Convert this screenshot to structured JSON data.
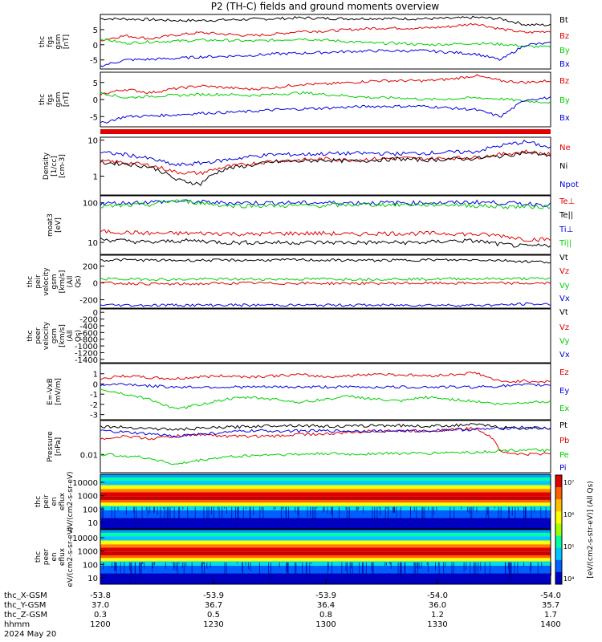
{
  "title": "P2 (TH-C) fields and ground moments overview",
  "date_label": "2024 May 20",
  "footer": {
    "rows": [
      {
        "label": "thc_X-GSM",
        "values": [
          "-53.8",
          "-53.9",
          "-53.9",
          "-54.0",
          "-54.0"
        ]
      },
      {
        "label": "thc_Y-GSM",
        "values": [
          "37.0",
          "36.7",
          "36.4",
          "36.0",
          "35.7"
        ]
      },
      {
        "label": "thc_Z-GSM",
        "values": [
          "0.3",
          "0.5",
          "0.8",
          "1.2",
          "1.7"
        ]
      },
      {
        "label": "hhmm",
        "values": [
          "1200",
          "1230",
          "1300",
          "1330",
          "1400"
        ]
      }
    ]
  },
  "colorbar": {
    "label": "[eV/(cm2-s-str-eV)] (All Qs)",
    "ticks": [
      "10⁴",
      "10⁵",
      "10⁶",
      "10⁷"
    ]
  },
  "colors": {
    "black": "#000000",
    "red": "#e00000",
    "green": "#00d000",
    "blue": "#0000e0"
  },
  "chart_data": [
    {
      "id": "fgs",
      "type": "line",
      "ylabel": "thc fgs gsm [nT]",
      "yticks": [
        "5",
        "0",
        "-5"
      ],
      "ylim": [
        -8,
        10
      ],
      "series": [
        {
          "name": "Bt",
          "color": "black",
          "values": [
            8.6,
            8.5,
            8.3,
            8.0,
            8.0,
            8.2,
            8.4,
            8.6,
            8.9,
            8.7,
            8.6,
            8.7,
            8.6,
            8.6,
            8.7,
            9.0,
            8.6,
            6.6,
            6.5
          ]
        },
        {
          "name": "Bz",
          "color": "red",
          "values": [
            1.5,
            3.0,
            2.0,
            3.2,
            4.0,
            3.5,
            3.0,
            3.5,
            4.5,
            4.5,
            5.0,
            5.5,
            5.5,
            5.5,
            6.0,
            7.0,
            5.2,
            4.0,
            4.5
          ]
        },
        {
          "name": "By",
          "color": "green",
          "values": [
            2.0,
            0.5,
            1.0,
            1.2,
            1.5,
            1.5,
            1.2,
            1.5,
            2.0,
            1.5,
            1.0,
            0.5,
            0.5,
            0.0,
            0.2,
            0.5,
            0.2,
            -0.5,
            -0.8
          ]
        },
        {
          "name": "Bx",
          "color": "blue",
          "values": [
            -7.0,
            -5.0,
            -4.8,
            -4.5,
            -4.0,
            -3.8,
            -3.5,
            -3.0,
            -2.8,
            -2.5,
            -2.2,
            -2.0,
            -2.0,
            -2.0,
            -2.5,
            -3.0,
            -5.0,
            0.0,
            0.5
          ]
        }
      ]
    },
    {
      "id": "fgm",
      "type": "line",
      "ylabel": "thc fgs gsm [nT]",
      "yticks": [
        "5",
        "0",
        "-5"
      ],
      "ylim": [
        -8,
        8
      ],
      "series": [
        {
          "name": "Bz",
          "color": "red",
          "values": [
            1.5,
            3.0,
            2.0,
            3.2,
            4.0,
            3.5,
            3.0,
            3.5,
            4.5,
            4.5,
            5.0,
            5.5,
            5.5,
            5.5,
            6.0,
            7.0,
            5.5,
            5.0,
            5.5
          ]
        },
        {
          "name": "By",
          "color": "green",
          "values": [
            2.0,
            0.5,
            1.0,
            1.2,
            1.5,
            1.5,
            1.2,
            1.5,
            2.0,
            1.5,
            1.0,
            0.5,
            0.5,
            0.0,
            0.2,
            0.5,
            0.2,
            -0.5,
            -0.8
          ]
        },
        {
          "name": "Bx",
          "color": "blue",
          "values": [
            -7.0,
            -5.0,
            -4.8,
            -4.5,
            -4.0,
            -3.8,
            -3.5,
            -3.0,
            -2.8,
            -2.5,
            -2.2,
            -2.0,
            -2.0,
            -2.0,
            -2.5,
            -3.0,
            -5.0,
            0.0,
            0.5
          ]
        }
      ]
    },
    {
      "id": "density",
      "type": "line",
      "ylabel": "Density [1/cc] [cm-3]",
      "yticks": [
        "10",
        "1"
      ],
      "log": true,
      "ylim": [
        0.3,
        12
      ],
      "series": [
        {
          "name": "Ne",
          "color": "red",
          "values": [
            2.6,
            2.4,
            2.0,
            1.3,
            1.2,
            1.8,
            2.2,
            2.7,
            2.8,
            3.0,
            2.8,
            3.0,
            3.2,
            3.0,
            3.2,
            3.3,
            4.0,
            4.8,
            4.0
          ]
        },
        {
          "name": "Ni",
          "color": "black",
          "values": [
            2.4,
            2.2,
            1.8,
            0.8,
            0.6,
            1.6,
            2.0,
            2.5,
            2.6,
            2.8,
            2.6,
            2.8,
            3.0,
            2.8,
            3.0,
            3.1,
            3.6,
            4.5,
            3.8
          ]
        },
        {
          "name": "Npot",
          "color": "blue",
          "values": [
            4.5,
            4.0,
            3.0,
            2.0,
            2.3,
            2.8,
            3.5,
            4.0,
            4.0,
            4.2,
            4.3,
            4.3,
            4.2,
            4.4,
            4.6,
            4.8,
            7.0,
            9.0,
            6.0
          ]
        }
      ]
    },
    {
      "id": "temps",
      "type": "line",
      "ylabel": "moat3 [eV]",
      "yticks": [
        "100",
        "10"
      ],
      "log": true,
      "ylim": [
        5,
        150
      ],
      "series": [
        {
          "name": "Te⊥",
          "color": "red",
          "values": [
            19,
            18,
            17,
            17,
            17,
            17,
            16,
            17,
            17,
            17,
            16,
            17,
            17,
            17,
            17,
            16,
            15,
            12,
            12
          ]
        },
        {
          "name": "Te||",
          "color": "black",
          "values": [
            12,
            11,
            10,
            11,
            11,
            10,
            10,
            10,
            10,
            10,
            10,
            10,
            10,
            10,
            11,
            11,
            9,
            8,
            8.5
          ]
        },
        {
          "name": "Ti⊥",
          "color": "blue",
          "values": [
            95,
            100,
            105,
            110,
            105,
            100,
            100,
            100,
            100,
            100,
            100,
            100,
            100,
            100,
            100,
            105,
            100,
            95,
            90
          ]
        },
        {
          "name": "Ti||",
          "color": "green",
          "values": [
            80,
            85,
            90,
            115,
            100,
            85,
            85,
            85,
            85,
            85,
            90,
            90,
            90,
            90,
            90,
            85,
            80,
            80,
            80
          ]
        }
      ]
    },
    {
      "id": "peir_vel",
      "type": "line",
      "ylabel": "thc peir velocity gsm [km/s] (All Qs)",
      "yticks": [
        "200",
        "0",
        "-200"
      ],
      "ylim": [
        -300,
        330
      ],
      "series": [
        {
          "name": "Vt",
          "color": "black",
          "values": [
            270,
            275,
            270,
            268,
            270,
            270,
            270,
            272,
            275,
            270,
            270,
            268,
            270,
            275,
            272,
            275,
            270,
            255,
            250
          ]
        },
        {
          "name": "Vz",
          "color": "red",
          "values": [
            0,
            -5,
            -10,
            -15,
            -10,
            -5,
            0,
            -5,
            -3,
            -5,
            -3,
            -5,
            -2,
            -4,
            -3,
            -2,
            -4,
            -5,
            -3
          ]
        },
        {
          "name": "Vy",
          "color": "green",
          "values": [
            50,
            45,
            45,
            40,
            45,
            45,
            45,
            45,
            45,
            48,
            45,
            45,
            48,
            45,
            50,
            50,
            50,
            52,
            50
          ]
        },
        {
          "name": "Vx",
          "color": "blue",
          "values": [
            -260,
            -265,
            -265,
            -262,
            -265,
            -262,
            -265,
            -262,
            -265,
            -265,
            -262,
            -265,
            -265,
            -262,
            -265,
            -265,
            -262,
            -250,
            -255
          ]
        }
      ]
    },
    {
      "id": "peer_vel",
      "type": "line",
      "ylabel": "thc peer velocity gsm [km/s] (All Qs)",
      "yticks": [
        "0",
        "-200",
        "-400",
        "-600",
        "-800",
        "-1000",
        "-1200",
        "-1400"
      ],
      "ylim": [
        -1500,
        100
      ],
      "legend": [
        "Vt",
        "Vz",
        "Vy",
        "Vx"
      ],
      "series": []
    },
    {
      "id": "efield",
      "type": "line",
      "ylabel": "E=-VxB [mV/m]",
      "yticks": [
        "1",
        "0",
        "-1",
        "-2",
        "-3"
      ],
      "ylim": [
        -3.5,
        2.0
      ],
      "series": [
        {
          "name": "Ez",
          "color": "red",
          "values": [
            0.5,
            0.8,
            0.6,
            0.5,
            0.7,
            0.8,
            0.7,
            0.8,
            0.9,
            0.7,
            0.8,
            1.0,
            0.9,
            0.8,
            0.9,
            1.1,
            0.2,
            0.3,
            0.2
          ]
        },
        {
          "name": "Ey",
          "color": "blue",
          "values": [
            -0.1,
            0.0,
            -0.2,
            -0.3,
            -0.3,
            -0.3,
            -0.3,
            -0.3,
            -0.3,
            -0.3,
            -0.3,
            -0.3,
            -0.3,
            -0.3,
            -0.3,
            -0.3,
            -0.2,
            -0.1,
            -0.1
          ]
        },
        {
          "name": "Ex",
          "color": "green",
          "values": [
            -0.5,
            -1.0,
            -1.5,
            -2.5,
            -2.0,
            -1.5,
            -1.3,
            -1.5,
            -1.8,
            -1.5,
            -1.2,
            -1.5,
            -1.7,
            -1.3,
            -1.5,
            -1.7,
            -2.0,
            -1.8,
            -1.7
          ]
        }
      ]
    },
    {
      "id": "pressure",
      "type": "line",
      "ylabel": "Pressure [nPa]",
      "yticks": [
        "0.01"
      ],
      "log": true,
      "ylim": [
        0.002,
        0.2
      ],
      "series": [
        {
          "name": "Pt",
          "color": "black",
          "values": [
            0.12,
            0.11,
            0.1,
            0.09,
            0.1,
            0.11,
            0.12,
            0.13,
            0.13,
            0.12,
            0.12,
            0.13,
            0.13,
            0.12,
            0.13,
            0.14,
            0.11,
            0.1,
            0.1
          ]
        },
        {
          "name": "Pb",
          "color": "red",
          "values": [
            0.04,
            0.05,
            0.04,
            0.05,
            0.06,
            0.05,
            0.05,
            0.05,
            0.06,
            0.06,
            0.07,
            0.08,
            0.08,
            0.08,
            0.09,
            0.1,
            0.012,
            0.01,
            0.011
          ]
        },
        {
          "name": "Pe",
          "color": "green",
          "values": [
            0.01,
            0.009,
            0.007,
            0.004,
            0.006,
            0.008,
            0.009,
            0.01,
            0.01,
            0.011,
            0.01,
            0.011,
            0.011,
            0.011,
            0.012,
            0.012,
            0.014,
            0.015,
            0.014
          ]
        },
        {
          "name": "Pi",
          "color": "blue",
          "values": [
            0.08,
            0.07,
            0.06,
            0.05,
            0.06,
            0.07,
            0.08,
            0.08,
            0.08,
            0.08,
            0.08,
            0.08,
            0.08,
            0.08,
            0.09,
            0.09,
            0.1,
            0.11,
            0.1
          ]
        }
      ]
    },
    {
      "id": "peir_spec",
      "type": "heatmap",
      "ylabel": "thc peir en eflux eV/(cm2-s-sr-eV)",
      "yticks": [
        "10000",
        "1000",
        "100",
        "10"
      ]
    },
    {
      "id": "peer_spec",
      "type": "heatmap",
      "ylabel": "thc peer en eflux eV/(cm2-s-sr-eV)",
      "yticks": [
        "10000",
        "1000",
        "100",
        "10"
      ]
    }
  ]
}
